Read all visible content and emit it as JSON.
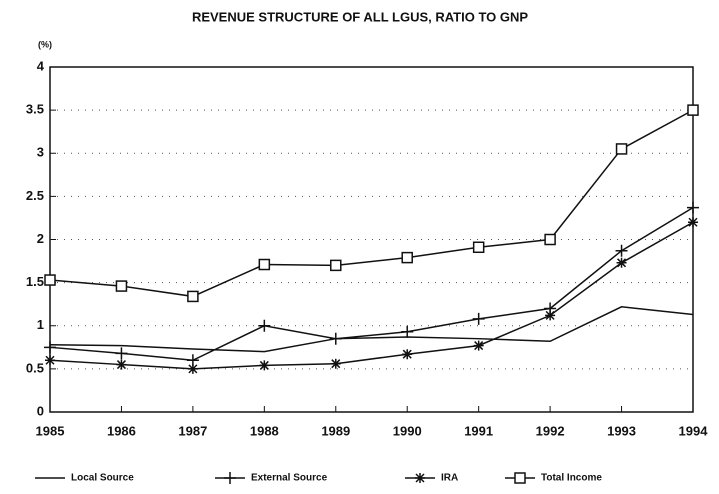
{
  "chart_data": {
    "type": "line",
    "title": "REVENUE STRUCTURE OF ALL LGUS, RATIO TO GNP",
    "y_unit_label": "(%)",
    "x": [
      1985,
      1986,
      1987,
      1988,
      1989,
      1990,
      1991,
      1992,
      1993,
      1994
    ],
    "xlim": [
      1985,
      1994
    ],
    "xticks": [
      1985,
      1986,
      1987,
      1988,
      1989,
      1990,
      1991,
      1992,
      1993,
      1994
    ],
    "ylim": [
      0,
      4
    ],
    "yticks": [
      0,
      0.5,
      1,
      1.5,
      2,
      2.5,
      3,
      3.5,
      4
    ],
    "grid": true,
    "legend": "bottom",
    "series": [
      {
        "name": "Local Source",
        "color": "#111111",
        "marker": "none",
        "values": [
          0.78,
          0.77,
          0.73,
          0.7,
          0.85,
          0.87,
          0.85,
          0.82,
          1.22,
          1.13
        ]
      },
      {
        "name": "External Source",
        "color": "#111111",
        "marker": "plus",
        "values": [
          0.75,
          0.68,
          0.6,
          1.0,
          0.85,
          0.93,
          1.08,
          1.2,
          1.87,
          2.37
        ]
      },
      {
        "name": "IRA",
        "color": "#111111",
        "marker": "star",
        "values": [
          0.6,
          0.55,
          0.5,
          0.54,
          0.56,
          0.67,
          0.77,
          1.12,
          1.73,
          2.2
        ]
      },
      {
        "name": "Total Income",
        "color": "#111111",
        "marker": "square",
        "values": [
          1.53,
          1.46,
          1.34,
          1.71,
          1.7,
          1.79,
          1.91,
          2.0,
          3.05,
          3.5
        ]
      }
    ]
  }
}
